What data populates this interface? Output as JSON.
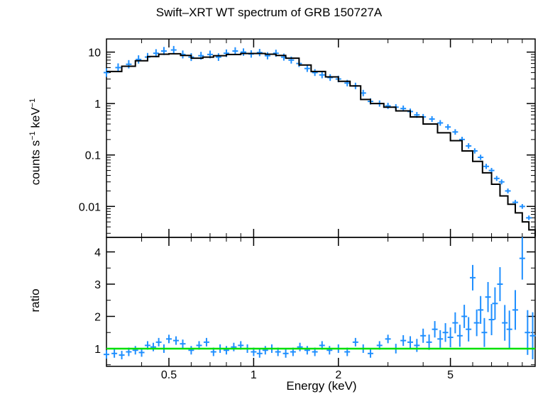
{
  "colors": {
    "data": "#1f8fff",
    "model": "#000000",
    "unity": "#00e000",
    "axes": "#000000"
  },
  "chart_data": [
    {
      "type": "line",
      "panel": "spectrum",
      "title": "Swift–XRT WT spectrum of GRB 150727A",
      "xlabel": "Energy (keV)",
      "ylabel_main": "counts s",
      "ylabel_exp1": "−1",
      "ylabel_mid": " keV",
      "ylabel_exp2": "−1",
      "xscale": "log",
      "yscale": "log",
      "xlim": [
        0.3,
        10
      ],
      "ylim": [
        0.0025,
        18
      ],
      "xticks": [
        {
          "v": 0.5,
          "label": "0.5"
        },
        {
          "v": 1,
          "label": "1"
        },
        {
          "v": 2,
          "label": "2"
        },
        {
          "v": 5,
          "label": "5"
        }
      ],
      "yticks": [
        {
          "v": 10,
          "label": "10"
        },
        {
          "v": 1,
          "label": "1"
        },
        {
          "v": 0.1,
          "label": "0.1"
        },
        {
          "v": 0.01,
          "label": "0.01"
        }
      ],
      "series": [
        {
          "kind": "model",
          "x": [
            0.3,
            0.34,
            0.38,
            0.42,
            0.46,
            0.5,
            0.55,
            0.6,
            0.66,
            0.72,
            0.8,
            0.9,
            1.0,
            1.1,
            1.2,
            1.3,
            1.45,
            1.6,
            1.8,
            2.0,
            2.2,
            2.4,
            2.6,
            2.9,
            3.2,
            3.6,
            4.0,
            4.5,
            5.0,
            5.5,
            6.0,
            6.5,
            7.0,
            7.5,
            8.0,
            8.5,
            9.0,
            9.5,
            10.0
          ],
          "y": [
            4.2,
            5.3,
            6.8,
            8.2,
            9.1,
            9.3,
            8.6,
            7.6,
            8.0,
            8.5,
            9.0,
            9.4,
            9.4,
            9.1,
            8.6,
            7.6,
            5.6,
            4.2,
            3.3,
            2.7,
            2.2,
            1.2,
            1.0,
            0.85,
            0.72,
            0.55,
            0.4,
            0.27,
            0.19,
            0.12,
            0.075,
            0.045,
            0.027,
            0.016,
            0.011,
            0.0075,
            0.005,
            0.0035,
            0.0026
          ]
        },
        {
          "kind": "data",
          "x": [
            0.3,
            0.33,
            0.36,
            0.39,
            0.42,
            0.45,
            0.48,
            0.52,
            0.56,
            0.6,
            0.65,
            0.7,
            0.75,
            0.8,
            0.86,
            0.92,
            0.98,
            1.05,
            1.12,
            1.2,
            1.28,
            1.36,
            1.45,
            1.55,
            1.65,
            1.75,
            1.87,
            2.0,
            2.15,
            2.3,
            2.45,
            2.6,
            2.8,
            3.0,
            3.2,
            3.4,
            3.6,
            3.8,
            4.0,
            4.3,
            4.6,
            4.9,
            5.2,
            5.5,
            5.8,
            6.1,
            6.4,
            6.7,
            7.0,
            7.3,
            7.6,
            8.0,
            8.5,
            9.0,
            9.5
          ],
          "y": [
            4.0,
            5.0,
            5.8,
            7.2,
            8.0,
            9.5,
            10.5,
            11.0,
            9.0,
            8.0,
            8.5,
            9.0,
            8.0,
            9.5,
            10.5,
            10.0,
            9.2,
            9.8,
            8.5,
            9.5,
            8.0,
            7.0,
            6.0,
            4.8,
            4.0,
            3.6,
            3.2,
            3.0,
            2.5,
            2.2,
            1.6,
            1.1,
            1.0,
            0.9,
            0.85,
            0.8,
            0.7,
            0.6,
            0.55,
            0.5,
            0.42,
            0.35,
            0.28,
            0.2,
            0.15,
            0.12,
            0.09,
            0.06,
            0.05,
            0.035,
            0.03,
            0.02,
            0.012,
            0.01,
            0.006
          ]
        }
      ]
    },
    {
      "type": "scatter",
      "panel": "ratio",
      "xlabel": "Energy (keV)",
      "ylabel": "ratio",
      "xscale": "log",
      "xlim": [
        0.3,
        10
      ],
      "ylim": [
        0.45,
        4.45
      ],
      "yticks": [
        {
          "v": 1,
          "label": "1"
        },
        {
          "v": 2,
          "label": "2"
        },
        {
          "v": 3,
          "label": "3"
        },
        {
          "v": 4,
          "label": "4"
        }
      ],
      "unity": 1,
      "series": [
        {
          "kind": "data",
          "x": [
            0.3,
            0.32,
            0.34,
            0.36,
            0.38,
            0.4,
            0.42,
            0.44,
            0.46,
            0.48,
            0.5,
            0.53,
            0.56,
            0.6,
            0.64,
            0.68,
            0.72,
            0.76,
            0.8,
            0.85,
            0.9,
            0.95,
            1.0,
            1.05,
            1.1,
            1.16,
            1.22,
            1.3,
            1.38,
            1.46,
            1.55,
            1.65,
            1.75,
            1.86,
            2.0,
            2.15,
            2.3,
            2.45,
            2.6,
            2.8,
            3.0,
            3.2,
            3.4,
            3.6,
            3.8,
            4.0,
            4.2,
            4.4,
            4.6,
            4.8,
            5.0,
            5.2,
            5.4,
            5.6,
            5.8,
            6.0,
            6.2,
            6.4,
            6.6,
            6.8,
            7.0,
            7.2,
            7.5,
            7.8,
            8.1,
            8.5,
            9.0,
            9.4,
            9.8
          ],
          "y": [
            0.82,
            0.85,
            0.8,
            0.9,
            0.95,
            0.88,
            1.1,
            1.05,
            1.2,
            1.0,
            1.3,
            1.25,
            1.15,
            0.95,
            1.1,
            1.2,
            0.9,
            1.0,
            0.95,
            1.05,
            1.1,
            1.0,
            0.9,
            0.85,
            0.95,
            1.0,
            0.9,
            0.85,
            0.9,
            1.05,
            0.95,
            0.9,
            1.1,
            0.95,
            1.0,
            0.9,
            1.2,
            1.0,
            0.85,
            1.1,
            1.3,
            1.0,
            1.25,
            1.2,
            1.1,
            1.4,
            1.2,
            1.6,
            1.3,
            1.5,
            1.35,
            1.8,
            1.4,
            2.0,
            1.6,
            3.2,
            1.8,
            2.2,
            1.5,
            2.6,
            1.9,
            2.4,
            3.0,
            1.8,
            1.6,
            2.2,
            3.8,
            1.5,
            1.4
          ]
        }
      ]
    }
  ]
}
